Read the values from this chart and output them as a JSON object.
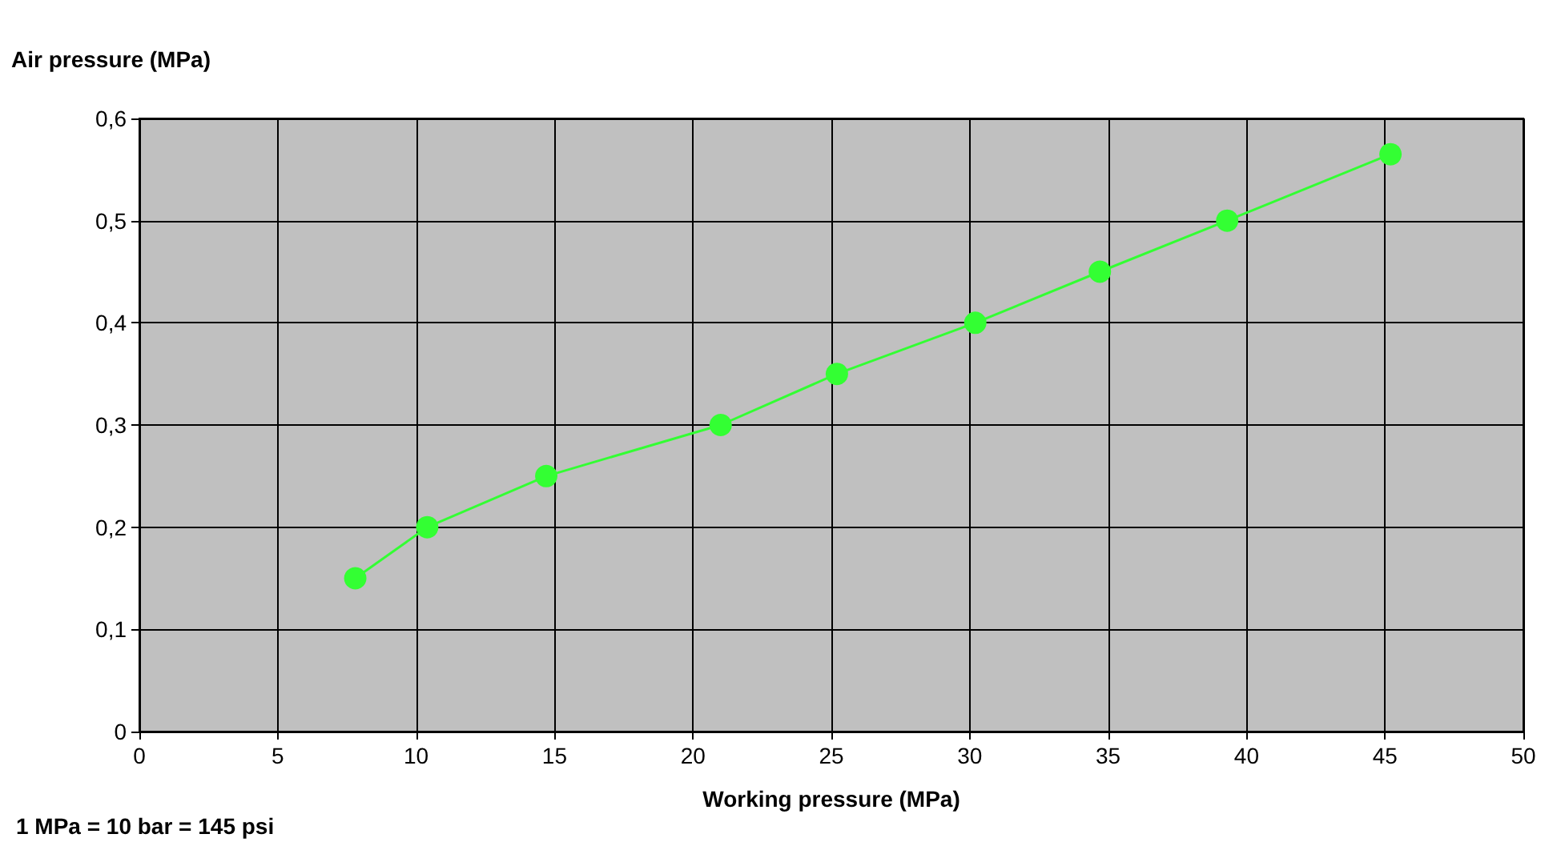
{
  "chart_data": {
    "type": "line",
    "xlabel": "Working pressure (MPa)",
    "ylabel": "Air pressure (MPa)",
    "annotations": [
      "1 MPa = 10 bar = 145 psi"
    ],
    "x": [
      7.8,
      10.4,
      14.7,
      21.0,
      25.2,
      30.2,
      34.7,
      39.3,
      45.2
    ],
    "series": [
      {
        "color": "#33ff33",
        "values": [
          0.15,
          0.2,
          0.25,
          0.3,
          0.35,
          0.4,
          0.45,
          0.5,
          0.565
        ]
      }
    ],
    "xlim": [
      0,
      50
    ],
    "xticks": [
      0,
      5,
      10,
      15,
      20,
      25,
      30,
      35,
      40,
      45,
      50
    ],
    "ylim": [
      0,
      0.6
    ],
    "yticks": [
      {
        "value": 0,
        "label": "0"
      },
      {
        "value": 0.1,
        "label": "0,1"
      },
      {
        "value": 0.2,
        "label": "0,2"
      },
      {
        "value": 0.3,
        "label": "0,3"
      },
      {
        "value": 0.4,
        "label": "0,4"
      },
      {
        "value": 0.5,
        "label": "0,5"
      },
      {
        "value": 0.6,
        "label": "0,6"
      }
    ],
    "grid": true,
    "marker": "circle",
    "line_style": "solid",
    "legend": false
  }
}
